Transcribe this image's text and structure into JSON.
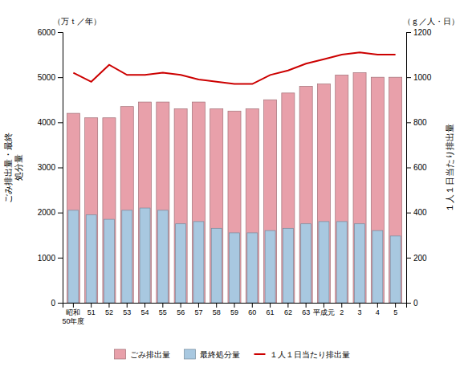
{
  "chart_data": {
    "type": "bar",
    "categories": [
      "昭和\n50年度",
      "51",
      "52",
      "53",
      "54",
      "55",
      "56",
      "57",
      "58",
      "59",
      "60",
      "61",
      "62",
      "63",
      "平成元",
      "2",
      "3",
      "4",
      "5"
    ],
    "series": [
      {
        "name": "ごみ排出量",
        "type": "bar",
        "color": "#e8a0aa",
        "values": [
          4200,
          4100,
          4100,
          4350,
          4450,
          4450,
          4300,
          4450,
          4300,
          4250,
          4300,
          4500,
          4650,
          4800,
          4850,
          5050,
          5100,
          5000,
          5000
        ]
      },
      {
        "name": "最終処分量",
        "type": "bar",
        "color": "#a8c8e0",
        "values": [
          2050,
          1950,
          1850,
          2050,
          2100,
          2050,
          1750,
          1800,
          1650,
          1550,
          1550,
          1600,
          1650,
          1750,
          1800,
          1800,
          1750,
          1600,
          1480
        ]
      },
      {
        "name": "１人１日当たり排出量",
        "type": "line",
        "color": "#cc0000",
        "axis": "y2",
        "values": [
          1020,
          980,
          1055,
          1010,
          1010,
          1020,
          1010,
          990,
          980,
          970,
          970,
          1010,
          1030,
          1060,
          1080,
          1100,
          1110,
          1100,
          1100
        ]
      }
    ],
    "y_label": "ごみ排出量・最終\n処分量",
    "y2_label": "１人１日当たり排出量",
    "annotations": [
      "（万ｔ／年）",
      "（ｇ／人・日）"
    ],
    "ylim": [
      0,
      6000
    ],
    "yticks": [
      0,
      1000,
      2000,
      3000,
      4000,
      5000,
      6000
    ],
    "y2lim": [
      0,
      1200
    ],
    "y2ticks": [
      0,
      200,
      400,
      600,
      800,
      1000,
      1200
    ],
    "grid": false,
    "legend": "bottom"
  }
}
